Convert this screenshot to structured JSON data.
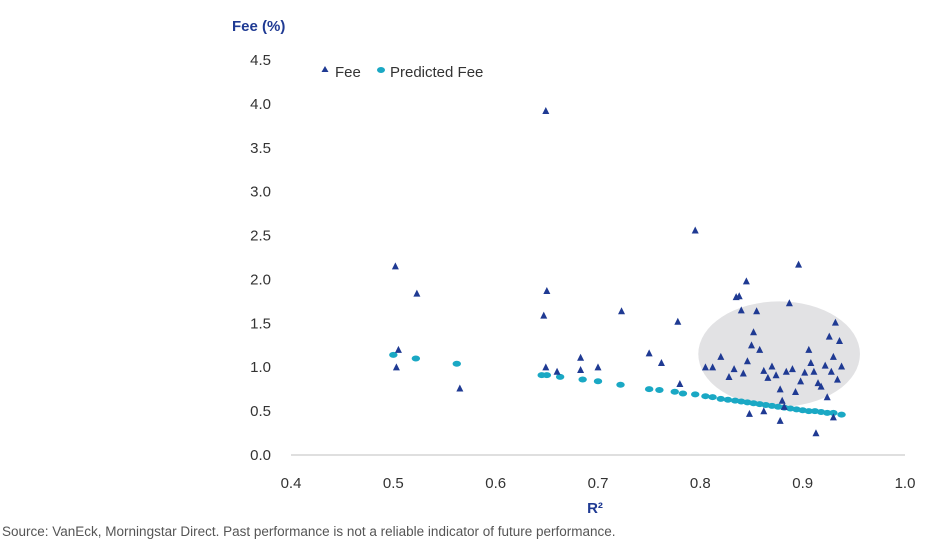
{
  "chart_data": {
    "type": "scatter",
    "title": "",
    "ylabel": "Fee (%)",
    "xlabel": "R²",
    "xlim": [
      0.4,
      1.0
    ],
    "ylim": [
      0.0,
      4.5
    ],
    "xticks": [
      "0.4",
      "0.5",
      "0.6",
      "0.7",
      "0.8",
      "0.9",
      "1.0"
    ],
    "yticks": [
      "0.0",
      "0.5",
      "1.0",
      "1.5",
      "2.0",
      "2.5",
      "3.0",
      "3.5",
      "4.0",
      "4.5"
    ],
    "legend_position": "top-left",
    "highlight_ellipse": {
      "cx": 0.877,
      "cy": 1.15,
      "rx": 0.079,
      "ry": 0.6,
      "color": "#e2e2e4"
    },
    "series": [
      {
        "name": "Fee",
        "marker": "triangle",
        "color": "#1f3a93",
        "points": [
          [
            0.502,
            2.15
          ],
          [
            0.505,
            1.2
          ],
          [
            0.503,
            1.0
          ],
          [
            0.523,
            1.84
          ],
          [
            0.565,
            0.76
          ],
          [
            0.649,
            3.92
          ],
          [
            0.65,
            1.87
          ],
          [
            0.647,
            1.59
          ],
          [
            0.649,
            1.0
          ],
          [
            0.66,
            0.95
          ],
          [
            0.683,
            1.11
          ],
          [
            0.683,
            0.97
          ],
          [
            0.7,
            1.0
          ],
          [
            0.723,
            1.64
          ],
          [
            0.75,
            1.16
          ],
          [
            0.762,
            1.05
          ],
          [
            0.778,
            1.52
          ],
          [
            0.78,
            0.81
          ],
          [
            0.795,
            2.56
          ],
          [
            0.805,
            1.0
          ],
          [
            0.812,
            1.0
          ],
          [
            0.82,
            1.12
          ],
          [
            0.828,
            0.89
          ],
          [
            0.835,
            1.8
          ],
          [
            0.838,
            1.81
          ],
          [
            0.84,
            1.65
          ],
          [
            0.845,
            1.98
          ],
          [
            0.833,
            0.98
          ],
          [
            0.842,
            0.93
          ],
          [
            0.846,
            1.07
          ],
          [
            0.85,
            1.25
          ],
          [
            0.852,
            1.4
          ],
          [
            0.855,
            1.64
          ],
          [
            0.858,
            1.2
          ],
          [
            0.862,
            0.96
          ],
          [
            0.866,
            0.88
          ],
          [
            0.87,
            1.01
          ],
          [
            0.874,
            0.91
          ],
          [
            0.878,
            0.75
          ],
          [
            0.88,
            0.62
          ],
          [
            0.884,
            0.95
          ],
          [
            0.887,
            1.73
          ],
          [
            0.89,
            0.98
          ],
          [
            0.893,
            0.72
          ],
          [
            0.896,
            2.17
          ],
          [
            0.898,
            0.84
          ],
          [
            0.902,
            0.94
          ],
          [
            0.906,
            1.2
          ],
          [
            0.908,
            1.05
          ],
          [
            0.911,
            0.95
          ],
          [
            0.915,
            0.82
          ],
          [
            0.918,
            0.78
          ],
          [
            0.922,
            1.02
          ],
          [
            0.924,
            0.66
          ],
          [
            0.926,
            1.35
          ],
          [
            0.928,
            0.95
          ],
          [
            0.93,
            1.12
          ],
          [
            0.932,
            1.51
          ],
          [
            0.934,
            0.86
          ],
          [
            0.936,
            1.3
          ],
          [
            0.938,
            1.01
          ],
          [
            0.848,
            0.47
          ],
          [
            0.862,
            0.5
          ],
          [
            0.878,
            0.39
          ],
          [
            0.882,
            0.55
          ],
          [
            0.913,
            0.25
          ],
          [
            0.93,
            0.43
          ]
        ]
      },
      {
        "name": "Predicted Fee",
        "marker": "ellipse",
        "color": "#1aa8c4",
        "points": [
          [
            0.5,
            1.14
          ],
          [
            0.522,
            1.1
          ],
          [
            0.562,
            1.04
          ],
          [
            0.645,
            0.91
          ],
          [
            0.65,
            0.91
          ],
          [
            0.663,
            0.89
          ],
          [
            0.685,
            0.86
          ],
          [
            0.7,
            0.84
          ],
          [
            0.722,
            0.8
          ],
          [
            0.75,
            0.75
          ],
          [
            0.76,
            0.74
          ],
          [
            0.775,
            0.72
          ],
          [
            0.783,
            0.7
          ],
          [
            0.795,
            0.69
          ],
          [
            0.805,
            0.67
          ],
          [
            0.812,
            0.66
          ],
          [
            0.82,
            0.64
          ],
          [
            0.827,
            0.63
          ],
          [
            0.834,
            0.62
          ],
          [
            0.84,
            0.61
          ],
          [
            0.846,
            0.6
          ],
          [
            0.852,
            0.59
          ],
          [
            0.858,
            0.58
          ],
          [
            0.864,
            0.57
          ],
          [
            0.87,
            0.56
          ],
          [
            0.876,
            0.55
          ],
          [
            0.882,
            0.54
          ],
          [
            0.888,
            0.53
          ],
          [
            0.894,
            0.52
          ],
          [
            0.9,
            0.51
          ],
          [
            0.906,
            0.5
          ],
          [
            0.912,
            0.5
          ],
          [
            0.918,
            0.49
          ],
          [
            0.924,
            0.48
          ],
          [
            0.93,
            0.48
          ],
          [
            0.938,
            0.46
          ]
        ]
      }
    ]
  },
  "footer": {
    "source": "Source: VanEck, Morningstar Direct. Past performance is not a reliable indicator of future performance."
  }
}
